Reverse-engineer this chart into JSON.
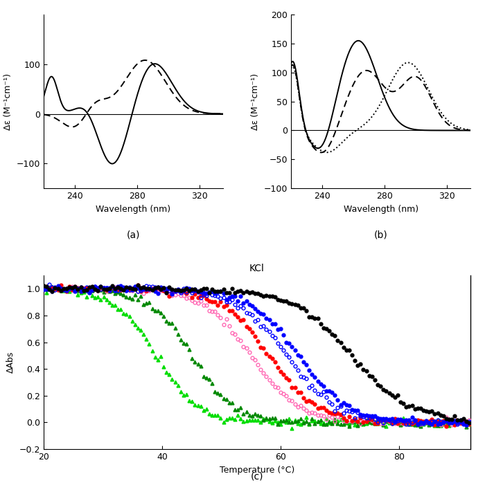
{
  "panel_a": {
    "xlabel": "Wavelength (nm)",
    "ylabel": "Δε (M⁻¹cm⁻¹)",
    "label": "(a)",
    "xlim": [
      220,
      335
    ],
    "ylim": [
      -150,
      200
    ],
    "yticks": [
      -100,
      0,
      100
    ],
    "xticks": [
      240,
      280,
      320
    ]
  },
  "panel_b": {
    "xlabel": "Wavelength (nm)",
    "ylabel": "Δε (M⁻¹cm⁻¹)",
    "label": "(b)",
    "xlim": [
      220,
      335
    ],
    "ylim": [
      -100,
      200
    ],
    "yticks": [
      -100,
      -50,
      0,
      50,
      100,
      150,
      200
    ],
    "xticks": [
      240,
      280,
      320
    ]
  },
  "panel_c": {
    "xlabel": "Temperature (°C)",
    "ylabel": "ΔAbs",
    "title": "KCl",
    "label": "(c)",
    "xlim": [
      20,
      92
    ],
    "ylim": [
      -0.2,
      1.1
    ],
    "yticks": [
      -0.2,
      0.0,
      0.2,
      0.4,
      0.6,
      0.8,
      1.0
    ],
    "xticks": [
      20,
      40,
      60,
      80
    ]
  }
}
